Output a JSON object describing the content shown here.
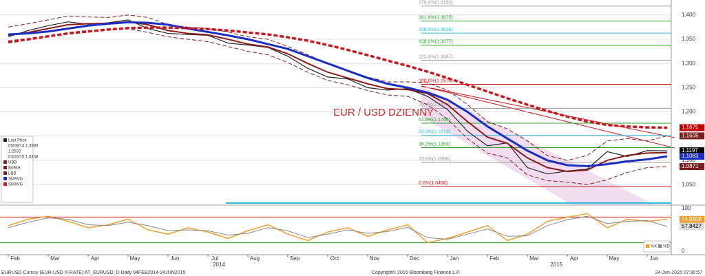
{
  "chart_data": [
    {
      "type": "line",
      "annotation": "EUR / USD DZIENNY",
      "categories": [
        "Feb",
        null,
        "Mar",
        null,
        "Apr",
        null,
        "May",
        null,
        "Jun",
        null,
        "Jul",
        null,
        "Aug",
        null,
        "Sep",
        null,
        "Oct",
        null,
        "Nov",
        null,
        "Dec",
        null,
        "Jan",
        null,
        "Feb",
        null,
        "Mar",
        null,
        "Apr",
        null,
        "May",
        null,
        "Jun",
        null
      ],
      "year_labels": [
        "2014",
        "2015"
      ],
      "ylim": [
        1.009,
        1.431
      ],
      "yticks": [
        {
          "value": 1.05,
          "label": "1.050"
        },
        {
          "value": 1.1,
          "label": "1.100"
        },
        {
          "value": 1.15,
          "label": "1.150"
        },
        {
          "value": 1.2,
          "label": "1.200"
        },
        {
          "value": 1.25,
          "label": "1.250"
        },
        {
          "value": 1.3,
          "label": "1.300"
        },
        {
          "value": 1.35,
          "label": "1.350"
        },
        {
          "value": 1.4,
          "label": "1.400"
        }
      ],
      "grid": true,
      "series": [
        {
          "name": "Last Price",
          "color": "#222222",
          "dash": false,
          "width": 1.2,
          "values": [
            1.355,
            1.368,
            1.378,
            1.386,
            1.381,
            1.384,
            1.39,
            1.372,
            1.362,
            1.36,
            1.358,
            1.342,
            1.338,
            1.333,
            1.315,
            1.29,
            1.272,
            1.268,
            1.25,
            1.245,
            1.248,
            1.232,
            1.205,
            1.16,
            1.13,
            1.136,
            1.085,
            1.072,
            1.078,
            1.082,
            1.118,
            1.108,
            1.12,
            1.1197
          ]
        },
        {
          "name": "UBB",
          "color": "#7a1f1f",
          "dash": true,
          "width": 1,
          "values": [
            1.375,
            1.382,
            1.39,
            1.398,
            1.396,
            1.395,
            1.4,
            1.395,
            1.38,
            1.375,
            1.372,
            1.365,
            1.355,
            1.35,
            1.335,
            1.318,
            1.3,
            1.285,
            1.272,
            1.262,
            1.262,
            1.26,
            1.245,
            1.215,
            1.18,
            1.165,
            1.14,
            1.11,
            1.1,
            1.11,
            1.14,
            1.145,
            1.14,
            1.1505
          ]
        },
        {
          "name": "BolMA",
          "color": "#8b1a1a",
          "dash": false,
          "width": 2,
          "values": [
            1.358,
            1.364,
            1.372,
            1.38,
            1.382,
            1.383,
            1.386,
            1.38,
            1.368,
            1.362,
            1.359,
            1.35,
            1.34,
            1.334,
            1.32,
            1.3,
            1.282,
            1.27,
            1.258,
            1.248,
            1.246,
            1.238,
            1.215,
            1.18,
            1.148,
            1.135,
            1.105,
            1.085,
            1.077,
            1.08,
            1.1,
            1.11,
            1.115,
            1.116
          ]
        },
        {
          "name": "LBB",
          "color": "#7a1f1f",
          "dash": true,
          "width": 1,
          "values": [
            1.342,
            1.348,
            1.355,
            1.364,
            1.368,
            1.37,
            1.372,
            1.364,
            1.355,
            1.35,
            1.345,
            1.335,
            1.325,
            1.318,
            1.302,
            1.282,
            1.265,
            1.256,
            1.244,
            1.235,
            1.232,
            1.215,
            1.185,
            1.145,
            1.115,
            1.105,
            1.07,
            1.058,
            1.055,
            1.05,
            1.06,
            1.075,
            1.085,
            1.0871
          ]
        },
        {
          "name": "SMAVG",
          "color": "#1a2fbf",
          "dash": false,
          "width": 3,
          "values": [
            1.36,
            1.362,
            1.366,
            1.372,
            1.378,
            1.382,
            1.385,
            1.384,
            1.38,
            1.372,
            1.365,
            1.358,
            1.35,
            1.34,
            1.33,
            1.315,
            1.3,
            1.285,
            1.27,
            1.258,
            1.25,
            1.24,
            1.225,
            1.2,
            1.17,
            1.145,
            1.12,
            1.1,
            1.09,
            1.088,
            1.092,
            1.098,
            1.102,
            1.1083
          ]
        },
        {
          "name": "SMAVG",
          "color": "#c8181e",
          "dash": true,
          "width": 3.5,
          "values": [
            1.345,
            1.35,
            1.356,
            1.362,
            1.366,
            1.37,
            1.373,
            1.374,
            1.374,
            1.373,
            1.371,
            1.368,
            1.364,
            1.36,
            1.354,
            1.347,
            1.338,
            1.328,
            1.317,
            1.306,
            1.295,
            1.283,
            1.27,
            1.256,
            1.242,
            1.228,
            1.215,
            1.202,
            1.19,
            1.18,
            1.173,
            1.17,
            1.168,
            1.1675
          ]
        }
      ],
      "legend_notes": [
        "05/08/14 1.3993",
        "1.2532",
        "03/16/15 1.0458"
      ],
      "levels": [
        {
          "label": "0.0%(1.0458)",
          "value": 1.0458,
          "color": "#c8181e"
        },
        {
          "label": "23.6%(1.0956)",
          "value": 1.0956,
          "color": "#999999"
        },
        {
          "label": "38.2%(1.1263)",
          "value": 1.1263,
          "color": "#2aa02a"
        },
        {
          "label": "50.0%(1.1514)",
          "value": 1.1514,
          "color": "#33bbdd"
        },
        {
          "label": "61.8%(1.1766)",
          "value": 1.1766,
          "color": "#2aa02a"
        },
        {
          "label": "76.4%(1.2074)",
          "value": 1.2074,
          "color": "#999999"
        },
        {
          "label": "100.0%(1.2570)",
          "value": 1.257,
          "color": "#c8181e"
        },
        {
          "label": "123.6%(1.3067)",
          "value": 1.3067,
          "color": "#999999"
        },
        {
          "label": "138.2%(1.3377)",
          "value": 1.3377,
          "color": "#2aa02a"
        },
        {
          "label": "150.0%(1.3626)",
          "value": 1.3626,
          "color": "#33bbdd"
        },
        {
          "label": "161.8%(1.3875)",
          "value": 1.3875,
          "color": "#2aa02a"
        },
        {
          "label": "176.4%(1.4184)",
          "value": 1.4184,
          "color": "#999999"
        }
      ],
      "tags": [
        {
          "value": 1.1675,
          "color": "#c00000"
        },
        {
          "value": 1.1505,
          "color": "#7a1f1f"
        },
        {
          "value": 1.1197,
          "color": "#000000"
        },
        {
          "value": 1.1083,
          "color": "#1a2fbf"
        },
        {
          "value": 1.0871,
          "color": "#7a1f1f"
        }
      ]
    },
    {
      "type": "line",
      "ylim": [
        0,
        100
      ],
      "yticks": [
        0,
        100
      ],
      "bands": [
        20,
        80
      ],
      "series": [
        {
          "name": "%K",
          "color": "#f0a030",
          "dash": false,
          "width": 1.5,
          "values": [
            60,
            75,
            82,
            70,
            55,
            62,
            75,
            50,
            40,
            55,
            45,
            30,
            48,
            62,
            40,
            25,
            45,
            55,
            35,
            50,
            62,
            20,
            30,
            45,
            60,
            25,
            40,
            70,
            80,
            88,
            55,
            75,
            70,
            74.5508
          ]
        },
        {
          "name": "%D",
          "color": "#888888",
          "dash": false,
          "width": 1,
          "values": [
            55,
            68,
            78,
            75,
            62,
            60,
            68,
            60,
            48,
            50,
            48,
            38,
            42,
            55,
            48,
            32,
            40,
            50,
            42,
            46,
            56,
            32,
            28,
            40,
            52,
            35,
            36,
            60,
            74,
            82,
            65,
            70,
            72,
            57.8427
          ]
        }
      ],
      "tags": [
        {
          "value": 74.5508,
          "color": "#f0a030"
        },
        {
          "value": 57.8427,
          "color": "#dddddd"
        }
      ]
    }
  ],
  "footer": [
    "EURUSD Curncy (EUR-USD X-RATE) AT_EURUSD_D  Daily 04FEB2014-24JUN2015",
    "Copyright© 2015 Bloomberg Finance L.P.",
    "24-Jun-2015 07:30:57"
  ]
}
